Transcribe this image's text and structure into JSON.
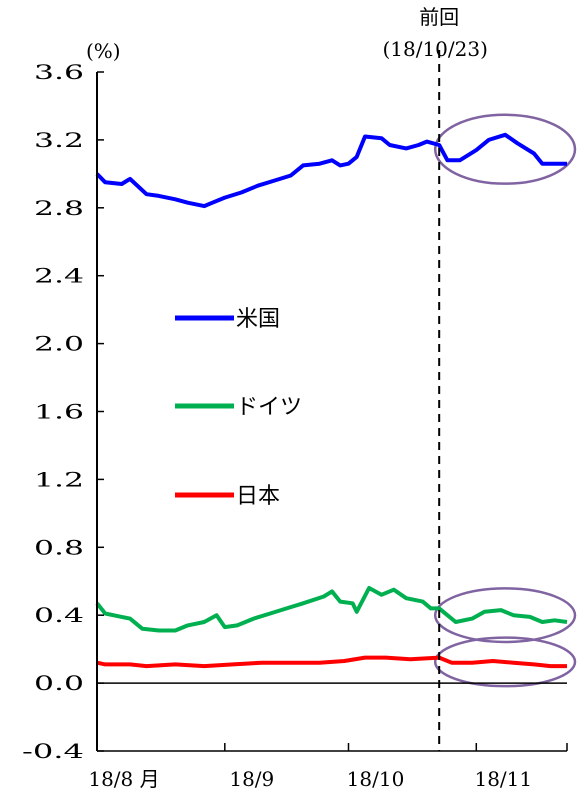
{
  "chart_data": {
    "type": "line",
    "ylabel": "(%)",
    "ylim": [
      -0.4,
      3.6
    ],
    "yticks": [
      "3.6",
      "3.2",
      "2.8",
      "2.4",
      "2.0",
      "1.6",
      "1.2",
      "0.8",
      "0.4",
      "0.0",
      "-0.4"
    ],
    "ytick_values": [
      3.6,
      3.2,
      2.8,
      2.4,
      2.0,
      1.6,
      1.2,
      0.8,
      0.4,
      0.0,
      -0.4
    ],
    "xticks": [
      "18/8 月",
      "18/9",
      "18/10",
      "18/11"
    ],
    "xlim": [
      "2018-08-01",
      "2018-11-23"
    ],
    "xtick_dates": [
      "2018-08-01",
      "2018-09-01",
      "2018-10-01",
      "2018-11-01"
    ],
    "grid": false,
    "legend_position": "center-left",
    "series": [
      {
        "name": "米国",
        "color": "#0000ff",
        "points": [
          [
            "2018-08-01",
            3.0
          ],
          [
            "2018-08-03",
            2.95
          ],
          [
            "2018-08-07",
            2.94
          ],
          [
            "2018-08-09",
            2.97
          ],
          [
            "2018-08-13",
            2.88
          ],
          [
            "2018-08-16",
            2.87
          ],
          [
            "2018-08-20",
            2.85
          ],
          [
            "2018-08-23",
            2.83
          ],
          [
            "2018-08-27",
            2.81
          ],
          [
            "2018-08-29",
            2.83
          ],
          [
            "2018-09-01",
            2.86
          ],
          [
            "2018-09-05",
            2.89
          ],
          [
            "2018-09-09",
            2.93
          ],
          [
            "2018-09-13",
            2.96
          ],
          [
            "2018-09-17",
            2.99
          ],
          [
            "2018-09-20",
            3.05
          ],
          [
            "2018-09-24",
            3.06
          ],
          [
            "2018-09-27",
            3.08
          ],
          [
            "2018-09-29",
            3.05
          ],
          [
            "2018-10-01",
            3.06
          ],
          [
            "2018-10-03",
            3.1
          ],
          [
            "2018-10-05",
            3.22
          ],
          [
            "2018-10-09",
            3.21
          ],
          [
            "2018-10-11",
            3.17
          ],
          [
            "2018-10-15",
            3.15
          ],
          [
            "2018-10-18",
            3.17
          ],
          [
            "2018-10-20",
            3.19
          ],
          [
            "2018-10-23",
            3.17
          ],
          [
            "2018-10-25",
            3.08
          ],
          [
            "2018-10-28",
            3.08
          ],
          [
            "2018-11-01",
            3.14
          ],
          [
            "2018-11-04",
            3.2
          ],
          [
            "2018-11-08",
            3.23
          ],
          [
            "2018-11-11",
            3.18
          ],
          [
            "2018-11-15",
            3.12
          ],
          [
            "2018-11-17",
            3.06
          ],
          [
            "2018-11-23",
            3.06
          ]
        ]
      },
      {
        "name": "ドイツ",
        "color": "#00b050",
        "points": [
          [
            "2018-08-01",
            0.47
          ],
          [
            "2018-08-03",
            0.41
          ],
          [
            "2018-08-07",
            0.39
          ],
          [
            "2018-08-09",
            0.38
          ],
          [
            "2018-08-12",
            0.32
          ],
          [
            "2018-08-16",
            0.31
          ],
          [
            "2018-08-20",
            0.31
          ],
          [
            "2018-08-23",
            0.34
          ],
          [
            "2018-08-27",
            0.36
          ],
          [
            "2018-08-30",
            0.4
          ],
          [
            "2018-09-01",
            0.33
          ],
          [
            "2018-09-04",
            0.34
          ],
          [
            "2018-09-08",
            0.38
          ],
          [
            "2018-09-12",
            0.41
          ],
          [
            "2018-09-16",
            0.44
          ],
          [
            "2018-09-20",
            0.47
          ],
          [
            "2018-09-25",
            0.51
          ],
          [
            "2018-09-27",
            0.54
          ],
          [
            "2018-09-29",
            0.48
          ],
          [
            "2018-10-02",
            0.47
          ],
          [
            "2018-10-03",
            0.42
          ],
          [
            "2018-10-06",
            0.56
          ],
          [
            "2018-10-09",
            0.52
          ],
          [
            "2018-10-12",
            0.55
          ],
          [
            "2018-10-15",
            0.5
          ],
          [
            "2018-10-19",
            0.48
          ],
          [
            "2018-10-21",
            0.44
          ],
          [
            "2018-10-23",
            0.44
          ],
          [
            "2018-10-25",
            0.4
          ],
          [
            "2018-10-27",
            0.36
          ],
          [
            "2018-10-31",
            0.38
          ],
          [
            "2018-11-03",
            0.42
          ],
          [
            "2018-11-07",
            0.43
          ],
          [
            "2018-11-10",
            0.4
          ],
          [
            "2018-11-14",
            0.39
          ],
          [
            "2018-11-17",
            0.36
          ],
          [
            "2018-11-20",
            0.37
          ],
          [
            "2018-11-23",
            0.36
          ]
        ]
      },
      {
        "name": "日本",
        "color": "#ff0000",
        "points": [
          [
            "2018-08-01",
            0.12
          ],
          [
            "2018-08-03",
            0.11
          ],
          [
            "2018-08-09",
            0.11
          ],
          [
            "2018-08-13",
            0.1
          ],
          [
            "2018-08-20",
            0.11
          ],
          [
            "2018-08-27",
            0.1
          ],
          [
            "2018-09-03",
            0.11
          ],
          [
            "2018-09-10",
            0.12
          ],
          [
            "2018-09-17",
            0.12
          ],
          [
            "2018-09-24",
            0.12
          ],
          [
            "2018-09-30",
            0.13
          ],
          [
            "2018-10-05",
            0.15
          ],
          [
            "2018-10-10",
            0.15
          ],
          [
            "2018-10-16",
            0.14
          ],
          [
            "2018-10-23",
            0.15
          ],
          [
            "2018-10-26",
            0.12
          ],
          [
            "2018-10-31",
            0.12
          ],
          [
            "2018-11-05",
            0.13
          ],
          [
            "2018-11-10",
            0.12
          ],
          [
            "2018-11-15",
            0.11
          ],
          [
            "2018-11-19",
            0.1
          ],
          [
            "2018-11-23",
            0.1
          ]
        ]
      }
    ],
    "annotations": [
      {
        "type": "vline",
        "x": "2018-10-23",
        "style": "dashed",
        "label_lines": [
          "前回",
          "(18/10/23)"
        ]
      },
      {
        "type": "ellipse",
        "series": "米国",
        "x_from": "2018-10-23",
        "x_to": "2018-11-23",
        "color": "#8064a2"
      },
      {
        "type": "ellipse",
        "series": "ドイツ",
        "x_from": "2018-10-23",
        "x_to": "2018-11-23",
        "color": "#8064a2"
      },
      {
        "type": "ellipse",
        "series": "日本",
        "x_from": "2018-10-23",
        "x_to": "2018-11-23",
        "color": "#8064a2"
      }
    ]
  }
}
